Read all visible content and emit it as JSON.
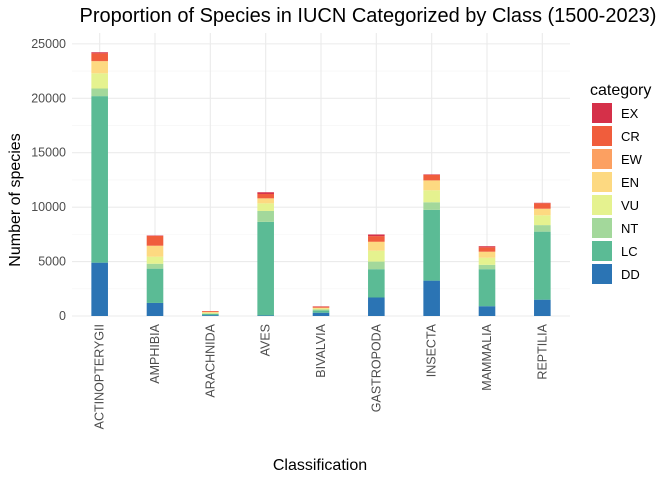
{
  "chart_data": {
    "type": "bar",
    "stacked": true,
    "title": "Proportion of Species in IUCN Categorized by Class (1500-2023)",
    "xlabel": "Classification",
    "ylabel": "Number of species",
    "ylim": [
      0,
      26000
    ],
    "yticks": [
      0,
      5000,
      10000,
      15000,
      20000,
      25000
    ],
    "grid": true,
    "legend_position": "right",
    "legend_title": "category",
    "categories": [
      "ACTINOPTERYGII",
      "AMPHIBIA",
      "ARACHNIDA",
      "AVES",
      "BIVALVIA",
      "GASTROPODA",
      "INSECTA",
      "MAMMALIA",
      "REPTILIA"
    ],
    "series": [
      {
        "name": "DD",
        "color": "#2b74b4",
        "values": [
          4900,
          1200,
          80,
          50,
          300,
          1700,
          3250,
          900,
          1500
        ]
      },
      {
        "name": "LC",
        "color": "#5bbb95",
        "values": [
          15300,
          3150,
          120,
          8600,
          200,
          2600,
          6500,
          3400,
          6250
        ]
      },
      {
        "name": "NT",
        "color": "#a3d89b",
        "values": [
          700,
          450,
          30,
          1000,
          100,
          700,
          700,
          400,
          600
        ]
      },
      {
        "name": "VU",
        "color": "#e5f28f",
        "values": [
          1400,
          650,
          60,
          700,
          80,
          1000,
          1100,
          650,
          900
        ]
      },
      {
        "name": "EN",
        "color": "#fdd981",
        "values": [
          1100,
          1000,
          80,
          450,
          80,
          800,
          900,
          550,
          600
        ]
      },
      {
        "name": "EW",
        "color": "#fca061",
        "values": [
          30,
          10,
          0,
          10,
          0,
          40,
          10,
          10,
          10
        ]
      },
      {
        "name": "CR",
        "color": "#f05d3c",
        "values": [
          700,
          900,
          80,
          400,
          100,
          500,
          500,
          400,
          500
        ]
      },
      {
        "name": "EX",
        "color": "#d53049",
        "values": [
          100,
          40,
          0,
          160,
          30,
          150,
          50,
          100,
          40
        ]
      }
    ]
  }
}
